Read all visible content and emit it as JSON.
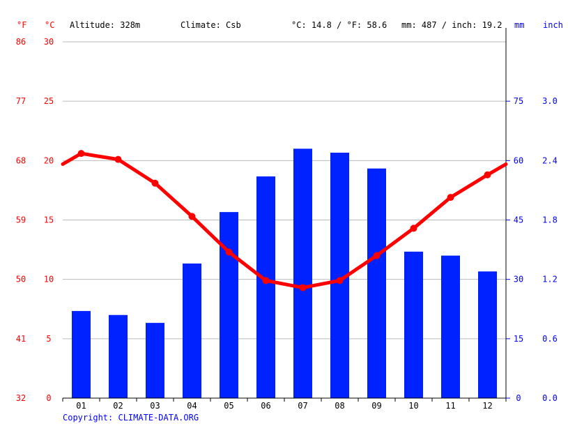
{
  "header": {
    "unit_f": "°F",
    "unit_c": "°C",
    "altitude": "Altitude: 328m",
    "climate": "Climate: Csb",
    "temp_avg": "°C: 14.8 / °F: 58.6",
    "precip_avg": "mm: 487 / inch: 19.2",
    "unit_mm": "mm",
    "unit_inch": "inch"
  },
  "copyright": "Copyright: CLIMATE-DATA.ORG",
  "colors": {
    "temperature": "#ff0000",
    "precipitation": "#0022ff",
    "left_axis": "#ff0000",
    "right_axis": "#0000ff",
    "grid": "#bbbbbb"
  },
  "chart_data": {
    "type": "bar",
    "categories": [
      "01",
      "02",
      "03",
      "04",
      "05",
      "06",
      "07",
      "08",
      "09",
      "10",
      "11",
      "12"
    ],
    "series": [
      {
        "type": "bar",
        "axis": "right",
        "values": [
          22,
          21,
          19,
          34,
          47,
          56,
          63,
          62,
          58,
          37,
          36,
          32
        ]
      },
      {
        "type": "line",
        "axis": "left",
        "values": [
          20.6,
          20.1,
          18.1,
          15.3,
          12.3,
          9.9,
          9.3,
          9.9,
          12.0,
          14.3,
          16.9,
          18.8
        ]
      }
    ],
    "left_axis_c": {
      "ticks": [
        "0",
        "5",
        "10",
        "15",
        "20",
        "25",
        "30"
      ],
      "values": [
        0,
        5,
        10,
        15,
        20,
        25,
        30
      ],
      "ylim": [
        0,
        30
      ]
    },
    "left_axis_f": {
      "ticks": [
        "32",
        "41",
        "50",
        "59",
        "68",
        "77",
        "86"
      ]
    },
    "right_axis_mm": {
      "ticks": [
        "0",
        "15",
        "30",
        "45",
        "60",
        "75"
      ],
      "values": [
        0,
        15,
        30,
        45,
        60,
        75
      ],
      "ylim": [
        0,
        90
      ]
    },
    "right_axis_inch": {
      "ticks": [
        "0.0",
        "0.6",
        "1.2",
        "1.8",
        "2.4",
        "3.0"
      ]
    },
    "grid": true
  }
}
